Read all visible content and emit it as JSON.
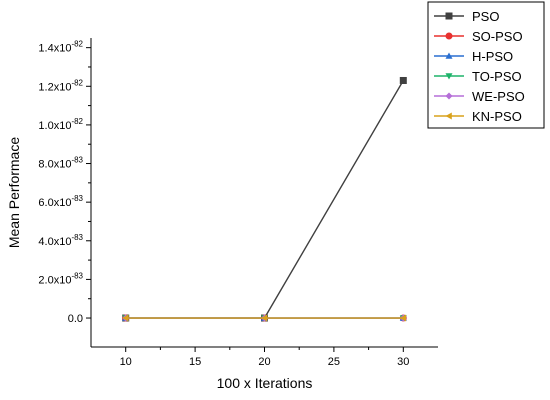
{
  "chart_data": {
    "type": "line",
    "xlabel": "100 x Iterations",
    "ylabel": "Mean Performace",
    "x": [
      10,
      20,
      30
    ],
    "xlim": [
      7.5,
      32.5
    ],
    "ylim": [
      -1.5e-83,
      1.45e-82
    ],
    "x_ticks": [
      "10",
      "15",
      "20",
      "25",
      "30"
    ],
    "y_ticks": [
      {
        "value": 0.0,
        "label": "0.0"
      },
      {
        "value": 2e-83,
        "label": "2.0x10",
        "exp": "-83"
      },
      {
        "value": 4e-83,
        "label": "4.0x10",
        "exp": "-83"
      },
      {
        "value": 6e-83,
        "label": "6.0x10",
        "exp": "-83"
      },
      {
        "value": 8e-83,
        "label": "8.0x10",
        "exp": "-83"
      },
      {
        "value": 1e-82,
        "label": "1.0x10",
        "exp": "-82"
      },
      {
        "value": 1.2e-82,
        "label": "1.2x10",
        "exp": "-82"
      },
      {
        "value": 1.4e-82,
        "label": "1.4x10",
        "exp": "-82"
      }
    ],
    "series": [
      {
        "name": "PSO",
        "values": [
          0,
          0,
          1.23e-82
        ],
        "color": "#404040",
        "marker": "square"
      },
      {
        "name": "SO-PSO",
        "values": [
          0,
          0,
          0
        ],
        "color": "#e8312f",
        "marker": "circle"
      },
      {
        "name": "H-PSO",
        "values": [
          0,
          0,
          0
        ],
        "color": "#2a6fd0",
        "marker": "triangle-up"
      },
      {
        "name": "TO-PSO",
        "values": [
          0,
          0,
          0
        ],
        "color": "#1fb36a",
        "marker": "triangle-down"
      },
      {
        "name": "WE-PSO",
        "values": [
          0,
          0,
          0
        ],
        "color": "#b56fd8",
        "marker": "diamond"
      },
      {
        "name": "KN-PSO",
        "values": [
          0,
          0,
          0
        ],
        "color": "#d9a21c",
        "marker": "triangle-left"
      }
    ],
    "legend_position": "top-right",
    "grid": false
  }
}
